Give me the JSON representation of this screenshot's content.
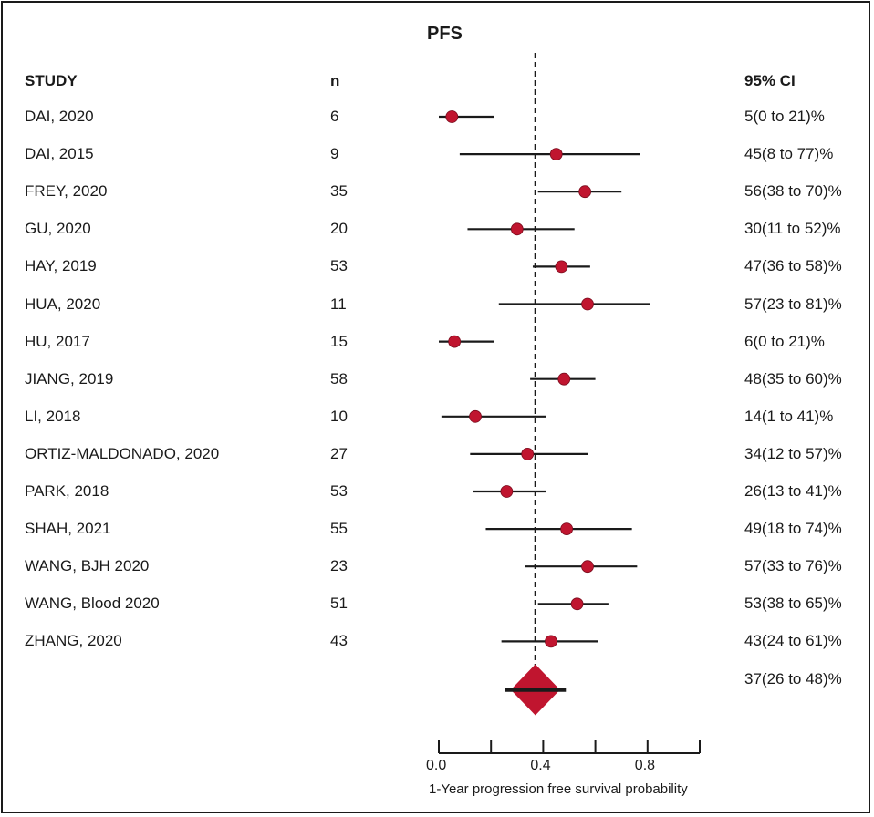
{
  "chart_data": {
    "type": "forest",
    "title": "PFS",
    "columns": {
      "study": "STUDY",
      "n": "n",
      "ci": "95% CI"
    },
    "xlabel": "1-Year progression free survival probability",
    "xlim": [
      0.0,
      1.0
    ],
    "xticks": [
      0.0,
      0.2,
      0.4,
      0.6,
      0.8,
      1.0
    ],
    "xtick_labels": [
      "0.0",
      "",
      "0.4",
      "",
      "0.8",
      ""
    ],
    "reference_line": 0.37,
    "studies": [
      {
        "name": "DAI, 2020",
        "n": "6",
        "estimate": 0.05,
        "lower": 0.0,
        "upper": 0.21,
        "label": "5(0 to 21)%"
      },
      {
        "name": "DAI, 2015",
        "n": "9",
        "estimate": 0.45,
        "lower": 0.08,
        "upper": 0.77,
        "label": "45(8 to 77)%"
      },
      {
        "name": "FREY, 2020",
        "n": "35",
        "estimate": 0.56,
        "lower": 0.38,
        "upper": 0.7,
        "label": "56(38 to 70)%"
      },
      {
        "name": "GU, 2020",
        "n": "20",
        "estimate": 0.3,
        "lower": 0.11,
        "upper": 0.52,
        "label": "30(11 to 52)%"
      },
      {
        "name": "HAY, 2019",
        "n": "53",
        "estimate": 0.47,
        "lower": 0.36,
        "upper": 0.58,
        "label": "47(36 to 58)%"
      },
      {
        "name": "HUA, 2020",
        "n": "11",
        "estimate": 0.57,
        "lower": 0.23,
        "upper": 0.81,
        "label": "57(23 to 81)%"
      },
      {
        "name": "HU, 2017",
        "n": "15",
        "estimate": 0.06,
        "lower": 0.0,
        "upper": 0.21,
        "label": "6(0 to 21)%"
      },
      {
        "name": "JIANG, 2019",
        "n": "58",
        "estimate": 0.48,
        "lower": 0.35,
        "upper": 0.6,
        "label": "48(35 to 60)%"
      },
      {
        "name": "LI, 2018",
        "n": "10",
        "estimate": 0.14,
        "lower": 0.01,
        "upper": 0.41,
        "label": "14(1 to 41)%"
      },
      {
        "name": "ORTIZ-MALDONADO, 2020",
        "n": "27",
        "estimate": 0.34,
        "lower": 0.12,
        "upper": 0.57,
        "label": "34(12 to 57)%"
      },
      {
        "name": "PARK, 2018",
        "n": "53",
        "estimate": 0.26,
        "lower": 0.13,
        "upper": 0.41,
        "label": "26(13 to 41)%"
      },
      {
        "name": "SHAH, 2021",
        "n": "55",
        "estimate": 0.49,
        "lower": 0.18,
        "upper": 0.74,
        "label": "49(18 to 74)%"
      },
      {
        "name": "WANG, BJH 2020",
        "n": "23",
        "estimate": 0.57,
        "lower": 0.33,
        "upper": 0.76,
        "label": "57(33 to 76)%"
      },
      {
        "name": "WANG, Blood 2020",
        "n": "51",
        "estimate": 0.53,
        "lower": 0.38,
        "upper": 0.65,
        "label": "53(38 to 65)%"
      },
      {
        "name": "ZHANG, 2020",
        "n": "43",
        "estimate": 0.43,
        "lower": 0.24,
        "upper": 0.61,
        "label": "43(24 to 61)%"
      }
    ],
    "pooled": {
      "estimate": 0.37,
      "lower": 0.26,
      "upper": 0.48,
      "label": "37(26 to 48)%"
    },
    "colors": {
      "marker": "#c0152f",
      "line": "#1a1a1a"
    }
  }
}
